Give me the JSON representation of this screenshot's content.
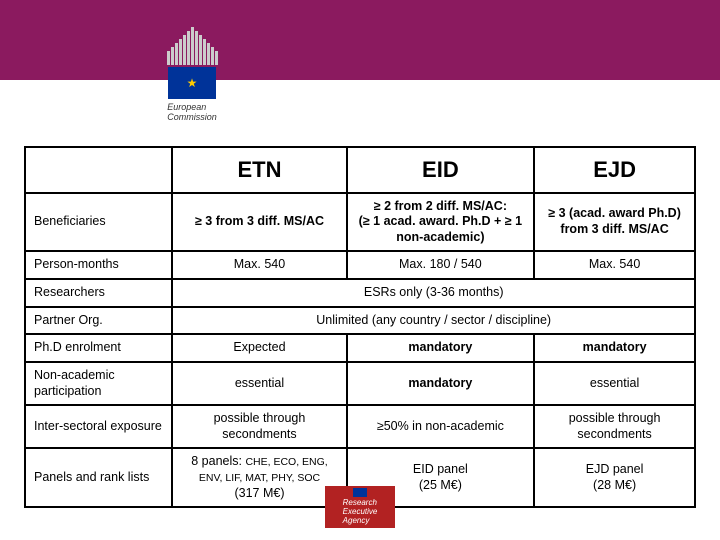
{
  "header": {
    "bar_color": "#8b1a5f",
    "logo_text": "European\nCommission"
  },
  "table": {
    "columns": [
      "",
      "ETN",
      "EID",
      "EJD"
    ],
    "rows": [
      {
        "label": "Beneficiaries",
        "c1": "≥ 3 from 3 diff. MS/AC",
        "c2": "≥ 2 from 2 diff. MS/AC:\n(≥ 1 acad. award. Ph.D + ≥ 1 non-academic)",
        "c3": "≥ 3 (acad. award Ph.D) from 3 diff. MS/AC",
        "bold": true
      },
      {
        "label": "Person-months",
        "c1": "Max. 540",
        "c2": "Max. 180 / 540",
        "c3": "Max. 540"
      },
      {
        "label": "Researchers",
        "span": "ESRs only (3-36 months)"
      },
      {
        "label": "Partner Org.",
        "span": "Unlimited (any country / sector / discipline)"
      },
      {
        "label": "Ph.D enrolment",
        "c1": "Expected",
        "c2": "mandatory",
        "c3": "mandatory",
        "bold_cols": [
          "c2",
          "c3"
        ]
      },
      {
        "label": "Non-academic participation",
        "c1": "essential",
        "c2": "mandatory",
        "c3": "essential",
        "bold_cols": [
          "c2"
        ]
      },
      {
        "label": "Inter-sectoral exposure",
        "c1": "possible through secondments",
        "c2": "≥50% in non-academic",
        "c3": "possible through secondments"
      },
      {
        "label": "Panels and rank lists",
        "c1_html": true,
        "c1": "8 panels:",
        "c1_sub": "CHE, ECO, ENG, ENV, LIF, MAT, PHY, SOC",
        "c1_line2": "(317 M€)",
        "c2": "EID panel\n(25 M€)",
        "c3": "EJD panel\n(28 M€)"
      }
    ]
  },
  "footer": {
    "text": "Research\nExecutive\nAgency"
  }
}
